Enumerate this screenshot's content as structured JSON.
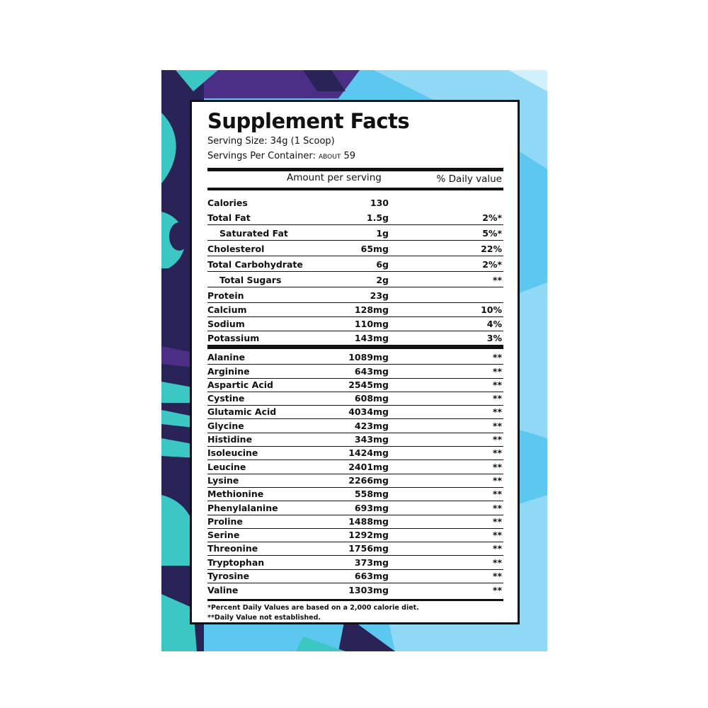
{
  "label": {
    "title": "Supplement Facts",
    "serving_size": "Serving Size: 34g (1 Scoop)",
    "servings_per_container_label": "Servings Per Container: ",
    "servings_per_container_prefix": "ABOUT",
    "servings_per_container_value": " 59",
    "header_amount": "Amount per serving",
    "header_daily_value": "% Daily value",
    "nutrients": [
      {
        "name": "Calories",
        "amount": "130",
        "dv": ""
      },
      {
        "name": "Total Fat",
        "amount": "1.5g",
        "dv": "2%*"
      },
      {
        "name": "Saturated Fat",
        "amount": "1g",
        "dv": "5%*"
      },
      {
        "name": "Cholesterol",
        "amount": "65mg",
        "dv": "22%"
      },
      {
        "name": "Total Carbohydrate",
        "amount": "6g",
        "dv": "2%*"
      },
      {
        "name": "Total Sugars",
        "amount": "2g",
        "dv": "**"
      },
      {
        "name": "Protein",
        "amount": "23g",
        "dv": ""
      },
      {
        "name": "Calcium",
        "amount": "128mg",
        "dv": "10%"
      },
      {
        "name": "Sodium",
        "amount": "110mg",
        "dv": "4%"
      },
      {
        "name": "Potassium",
        "amount": "143mg",
        "dv": "3%"
      }
    ],
    "amino_acids": [
      {
        "name": "Alanine",
        "amount": "1089mg",
        "dv": "**"
      },
      {
        "name": "Arginine",
        "amount": "643mg",
        "dv": "**"
      },
      {
        "name": "Aspartic Acid",
        "amount": "2545mg",
        "dv": "**"
      },
      {
        "name": "Cystine",
        "amount": "608mg",
        "dv": "**"
      },
      {
        "name": "Glutamic Acid",
        "amount": "4034mg",
        "dv": "**"
      },
      {
        "name": "Glycine",
        "amount": "423mg",
        "dv": "**"
      },
      {
        "name": "Histidine",
        "amount": "343mg",
        "dv": "**"
      },
      {
        "name": "Isoleucine",
        "amount": "1424mg",
        "dv": "**"
      },
      {
        "name": "Leucine",
        "amount": "2401mg",
        "dv": "**"
      },
      {
        "name": "Lysine",
        "amount": "2266mg",
        "dv": "**"
      },
      {
        "name": "Methionine",
        "amount": "558mg",
        "dv": "**"
      },
      {
        "name": "Phenylalanine",
        "amount": "693mg",
        "dv": "**"
      },
      {
        "name": "Proline",
        "amount": "1488mg",
        "dv": "**"
      },
      {
        "name": "Serine",
        "amount": "1292mg",
        "dv": "**"
      },
      {
        "name": "Threonine",
        "amount": "1756mg",
        "dv": "**"
      },
      {
        "name": "Tryptophan",
        "amount": "373mg",
        "dv": "**"
      },
      {
        "name": "Tyrosine",
        "amount": "663mg",
        "dv": "**"
      },
      {
        "name": "Valine",
        "amount": "1303mg",
        "dv": "**"
      }
    ],
    "footnote_1": "*Percent Daily Values are based on a 2,000 calorie diet.",
    "footnote_2": "**Daily Value not established."
  },
  "colors": {
    "navy": "#2a2357",
    "purple": "#4b2f86",
    "teal": "#3cc6c4",
    "sky": "#5cc7ef",
    "light_sky": "#8fd9f6"
  }
}
